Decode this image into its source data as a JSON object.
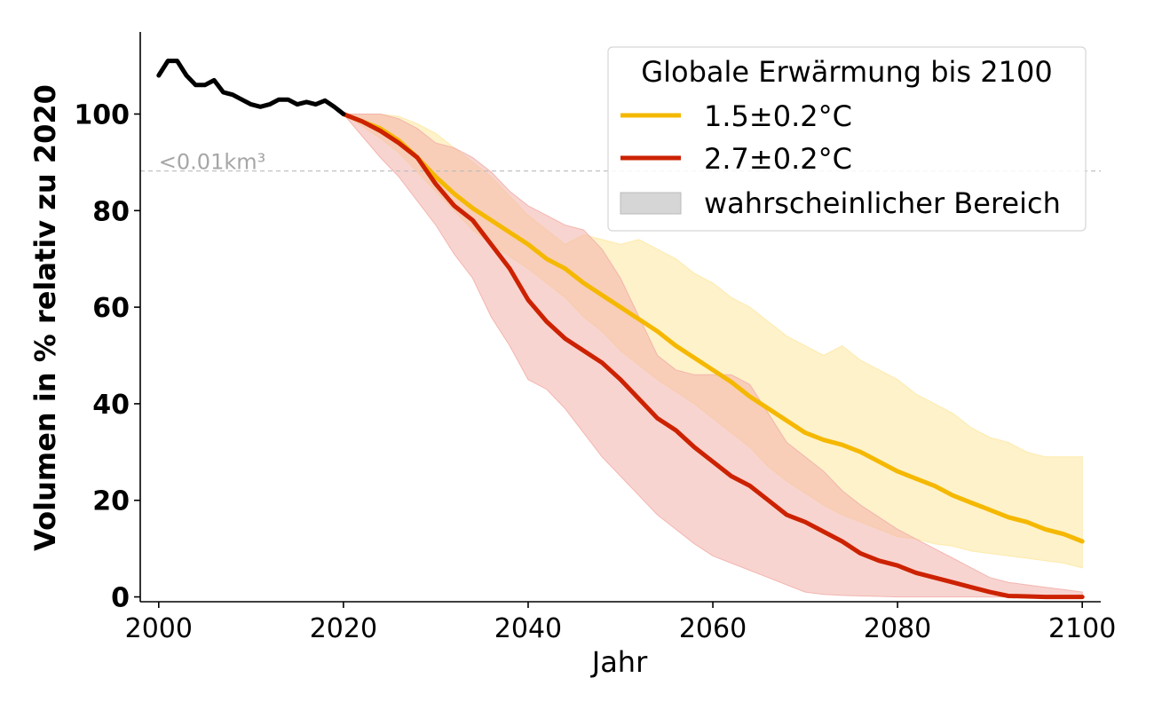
{
  "chart_data": {
    "type": "line",
    "title": "",
    "xlabel": "Jahr",
    "ylabel": "Volumen in % relativ zu 2020",
    "xlim": [
      1998,
      2102
    ],
    "ylim": [
      -1,
      117
    ],
    "xticks": [
      2000,
      2020,
      2040,
      2060,
      2080,
      2100
    ],
    "yticks": [
      0,
      20,
      40,
      60,
      80,
      100
    ],
    "grid": false,
    "legend": {
      "title": "Globale Erwärmung bis 2100",
      "placement": "top-right",
      "entries": [
        "1.5±0.2°C",
        "2.7±0.2°C",
        "wahrscheinlicher Bereich"
      ]
    },
    "reference_line": {
      "y": 88.2,
      "label": "<0.01km³",
      "color": "#bbbbbb"
    },
    "historical": {
      "color": "#000000",
      "x": [
        2000,
        2001,
        2002,
        2003,
        2004,
        2005,
        2006,
        2007,
        2008,
        2009,
        2010,
        2011,
        2012,
        2013,
        2014,
        2015,
        2016,
        2017,
        2018,
        2019,
        2020
      ],
      "y": [
        108,
        111,
        111,
        108,
        106,
        106,
        107,
        104.5,
        104,
        103,
        102,
        101.5,
        102,
        103,
        103,
        102,
        102.5,
        102,
        102.8,
        101.5,
        100
      ]
    },
    "series": [
      {
        "name": "1.5±0.2°C",
        "color": "#f5b800",
        "band_color": "#fde9a6",
        "x": [
          2020,
          2022,
          2024,
          2026,
          2028,
          2030,
          2032,
          2034,
          2036,
          2038,
          2040,
          2042,
          2044,
          2046,
          2048,
          2050,
          2052,
          2054,
          2056,
          2058,
          2060,
          2062,
          2064,
          2066,
          2068,
          2070,
          2072,
          2074,
          2076,
          2078,
          2080,
          2082,
          2084,
          2086,
          2088,
          2090,
          2092,
          2094,
          2096,
          2098,
          2100
        ],
        "y": [
          100,
          98.5,
          97,
          94.5,
          91,
          87,
          83.5,
          80.5,
          78,
          75.5,
          73,
          70,
          68,
          65,
          62.5,
          60,
          57.5,
          55,
          52,
          49.5,
          47,
          44.5,
          41.5,
          39,
          36.5,
          34,
          32.5,
          31.5,
          30,
          28,
          26,
          24.5,
          23,
          21,
          19.5,
          18,
          16.5,
          15.5,
          14,
          13,
          11.5
        ],
        "lower": [
          100,
          97.5,
          95,
          92,
          88,
          84,
          80,
          76,
          73,
          70.5,
          68,
          65,
          62,
          58,
          55,
          51,
          48,
          45,
          42.5,
          40,
          37,
          34,
          31,
          27,
          24,
          21.5,
          19,
          17,
          15.5,
          14,
          12.5,
          12,
          11,
          10.5,
          9.5,
          9,
          8.5,
          8,
          7.5,
          7,
          6
        ],
        "upper": [
          100,
          100,
          100,
          99.5,
          98,
          96,
          93,
          90,
          87,
          83,
          79,
          76,
          73,
          75,
          74,
          73,
          74,
          72,
          70,
          67,
          65,
          62,
          60,
          57,
          54,
          52,
          50,
          52,
          49,
          47,
          45,
          42,
          40,
          38,
          35,
          33,
          32,
          30,
          29,
          29,
          29
        ]
      },
      {
        "name": "2.7±0.2°C",
        "color": "#cc2200",
        "band_color": "#f2b0aa",
        "x": [
          2020,
          2022,
          2024,
          2026,
          2028,
          2030,
          2032,
          2034,
          2036,
          2038,
          2040,
          2042,
          2044,
          2046,
          2048,
          2050,
          2052,
          2054,
          2056,
          2058,
          2060,
          2062,
          2064,
          2066,
          2068,
          2070,
          2072,
          2074,
          2076,
          2078,
          2080,
          2082,
          2084,
          2086,
          2088,
          2090,
          2092,
          2094,
          2096,
          2098,
          2100
        ],
        "y": [
          100,
          98.5,
          96.5,
          94,
          91,
          85.5,
          81,
          78,
          73,
          68,
          61.5,
          57,
          53.5,
          51,
          48.5,
          45,
          41,
          37,
          34.5,
          31,
          28,
          25,
          23,
          20,
          17,
          15.5,
          13.5,
          11.5,
          9,
          7.5,
          6.5,
          5,
          4,
          3,
          2,
          1,
          0.2,
          0.1,
          0,
          0,
          0
        ],
        "lower": [
          100,
          95.5,
          91,
          87,
          82,
          77,
          71,
          66,
          58,
          52,
          45,
          43,
          39,
          34,
          29,
          25,
          21,
          17,
          14,
          11,
          8.5,
          7,
          5.5,
          4,
          2.5,
          1,
          0.5,
          0.3,
          0.2,
          0.1,
          0,
          0,
          0,
          0,
          0,
          0,
          0,
          0,
          0,
          0,
          0
        ],
        "upper": [
          100,
          100,
          100,
          99,
          97,
          94,
          93,
          91,
          88,
          84,
          81,
          79,
          77,
          76,
          72,
          66,
          58,
          50,
          47,
          46,
          46,
          46,
          44,
          38,
          32,
          29,
          26,
          22,
          19,
          16.5,
          14,
          12,
          10,
          8,
          6,
          4,
          3,
          2.5,
          2,
          1.5,
          1
        ]
      }
    ]
  }
}
